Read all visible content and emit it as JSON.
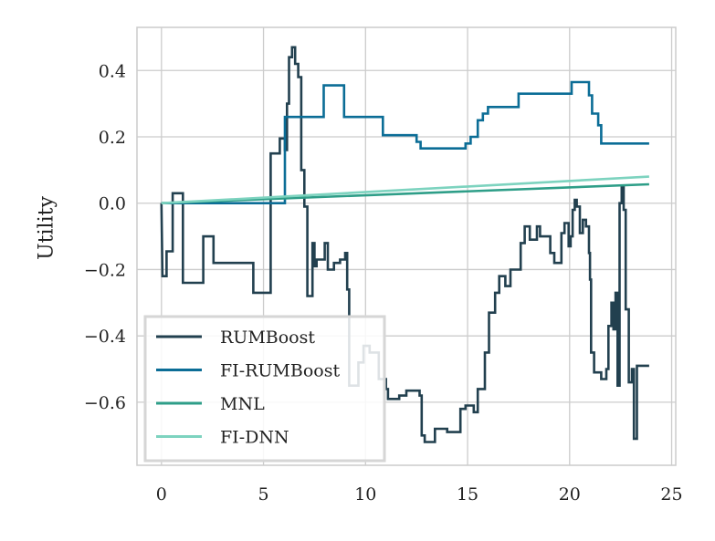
{
  "chart_data": {
    "type": "line",
    "title": "",
    "xlabel": "",
    "ylabel": "Utility",
    "xlim": [
      -1.2,
      25.2
    ],
    "ylim": [
      -0.79,
      0.53
    ],
    "xticks": [
      0,
      5,
      10,
      15,
      20,
      25
    ],
    "yticks": [
      -0.6,
      -0.4,
      -0.2,
      0.0,
      0.2,
      0.4
    ],
    "ytick_labels": [
      "−0.6",
      "−0.4",
      "−0.2",
      "0.0",
      "0.2",
      "0.4"
    ],
    "grid": true,
    "legend_position": "bottom-left",
    "series": [
      {
        "name": "RUMBoost",
        "color": "#22404f",
        "step": true,
        "points": [
          [
            0,
            0.0
          ],
          [
            0.05,
            -0.22
          ],
          [
            0.25,
            -0.22
          ],
          [
            0.25,
            -0.145
          ],
          [
            0.55,
            -0.145
          ],
          [
            0.55,
            0.03
          ],
          [
            1.05,
            0.03
          ],
          [
            1.05,
            -0.24
          ],
          [
            2.05,
            -0.24
          ],
          [
            2.05,
            -0.1
          ],
          [
            2.55,
            -0.1
          ],
          [
            2.55,
            -0.18
          ],
          [
            4.5,
            -0.18
          ],
          [
            4.5,
            -0.27
          ],
          [
            5.35,
            -0.27
          ],
          [
            5.35,
            0.15
          ],
          [
            5.8,
            0.15
          ],
          [
            5.8,
            0.195
          ],
          [
            6.05,
            0.195
          ],
          [
            6.05,
            0.16
          ],
          [
            6.15,
            0.16
          ],
          [
            6.15,
            0.3
          ],
          [
            6.25,
            0.3
          ],
          [
            6.25,
            0.44
          ],
          [
            6.4,
            0.44
          ],
          [
            6.4,
            0.47
          ],
          [
            6.55,
            0.47
          ],
          [
            6.55,
            0.42
          ],
          [
            6.7,
            0.42
          ],
          [
            6.7,
            0.38
          ],
          [
            6.85,
            0.38
          ],
          [
            6.85,
            0.1
          ],
          [
            7.0,
            0.1
          ],
          [
            7.0,
            -0.01
          ],
          [
            7.15,
            -0.01
          ],
          [
            7.15,
            -0.28
          ],
          [
            7.4,
            -0.28
          ],
          [
            7.4,
            -0.12
          ],
          [
            7.5,
            -0.12
          ],
          [
            7.5,
            -0.19
          ],
          [
            7.6,
            -0.19
          ],
          [
            7.6,
            -0.17
          ],
          [
            8.0,
            -0.17
          ],
          [
            8.0,
            -0.12
          ],
          [
            8.15,
            -0.12
          ],
          [
            8.15,
            -0.2
          ],
          [
            8.45,
            -0.2
          ],
          [
            8.45,
            -0.18
          ],
          [
            8.75,
            -0.18
          ],
          [
            8.75,
            -0.17
          ],
          [
            9.0,
            -0.17
          ],
          [
            9.0,
            -0.15
          ],
          [
            9.1,
            -0.15
          ],
          [
            9.1,
            -0.26
          ],
          [
            9.2,
            -0.26
          ],
          [
            9.2,
            -0.55
          ],
          [
            9.65,
            -0.55
          ],
          [
            9.65,
            -0.48
          ],
          [
            9.9,
            -0.48
          ],
          [
            9.9,
            -0.43
          ],
          [
            10.2,
            -0.43
          ],
          [
            10.2,
            -0.45
          ],
          [
            10.65,
            -0.45
          ],
          [
            10.65,
            -0.53
          ],
          [
            11.0,
            -0.53
          ],
          [
            11.0,
            -0.56
          ],
          [
            11.1,
            -0.56
          ],
          [
            11.1,
            -0.59
          ],
          [
            11.65,
            -0.59
          ],
          [
            11.65,
            -0.58
          ],
          [
            12.0,
            -0.58
          ],
          [
            12.0,
            -0.565
          ],
          [
            12.65,
            -0.565
          ],
          [
            12.65,
            -0.58
          ],
          [
            12.75,
            -0.58
          ],
          [
            12.75,
            -0.7
          ],
          [
            12.9,
            -0.7
          ],
          [
            12.9,
            -0.72
          ],
          [
            13.4,
            -0.72
          ],
          [
            13.4,
            -0.68
          ],
          [
            14.0,
            -0.68
          ],
          [
            14.0,
            -0.69
          ],
          [
            14.65,
            -0.69
          ],
          [
            14.65,
            -0.62
          ],
          [
            14.9,
            -0.62
          ],
          [
            14.9,
            -0.61
          ],
          [
            15.3,
            -0.61
          ],
          [
            15.3,
            -0.63
          ],
          [
            15.5,
            -0.63
          ],
          [
            15.5,
            -0.56
          ],
          [
            15.85,
            -0.56
          ],
          [
            15.85,
            -0.45
          ],
          [
            16.05,
            -0.45
          ],
          [
            16.05,
            -0.33
          ],
          [
            16.35,
            -0.33
          ],
          [
            16.35,
            -0.27
          ],
          [
            16.55,
            -0.27
          ],
          [
            16.55,
            -0.22
          ],
          [
            16.85,
            -0.22
          ],
          [
            16.85,
            -0.25
          ],
          [
            17.1,
            -0.25
          ],
          [
            17.1,
            -0.2
          ],
          [
            17.6,
            -0.2
          ],
          [
            17.6,
            -0.12
          ],
          [
            17.8,
            -0.12
          ],
          [
            17.8,
            -0.07
          ],
          [
            18.05,
            -0.07
          ],
          [
            18.05,
            -0.11
          ],
          [
            18.4,
            -0.11
          ],
          [
            18.4,
            -0.07
          ],
          [
            18.55,
            -0.07
          ],
          [
            18.55,
            -0.1
          ],
          [
            19.05,
            -0.1
          ],
          [
            19.05,
            -0.15
          ],
          [
            19.25,
            -0.15
          ],
          [
            19.25,
            -0.18
          ],
          [
            19.6,
            -0.18
          ],
          [
            19.6,
            -0.09
          ],
          [
            19.75,
            -0.09
          ],
          [
            19.75,
            -0.06
          ],
          [
            19.95,
            -0.06
          ],
          [
            19.95,
            -0.13
          ],
          [
            20.05,
            -0.13
          ],
          [
            20.05,
            -0.1
          ],
          [
            20.15,
            -0.1
          ],
          [
            20.15,
            -0.02
          ],
          [
            20.25,
            -0.02
          ],
          [
            20.25,
            0.01
          ],
          [
            20.35,
            0.01
          ],
          [
            20.35,
            -0.01
          ],
          [
            20.5,
            -0.01
          ],
          [
            20.5,
            -0.09
          ],
          [
            20.65,
            -0.09
          ],
          [
            20.65,
            -0.05
          ],
          [
            20.8,
            -0.05
          ],
          [
            20.8,
            -0.07
          ],
          [
            20.95,
            -0.07
          ],
          [
            20.95,
            -0.15
          ],
          [
            21.0,
            -0.15
          ],
          [
            21.0,
            -0.23
          ],
          [
            21.05,
            -0.23
          ],
          [
            21.05,
            -0.45
          ],
          [
            21.2,
            -0.45
          ],
          [
            21.2,
            -0.51
          ],
          [
            21.55,
            -0.51
          ],
          [
            21.55,
            -0.53
          ],
          [
            21.8,
            -0.53
          ],
          [
            21.8,
            -0.5
          ],
          [
            21.9,
            -0.5
          ],
          [
            21.9,
            -0.37
          ],
          [
            22.05,
            -0.37
          ],
          [
            22.05,
            -0.3
          ],
          [
            22.15,
            -0.3
          ],
          [
            22.15,
            -0.38
          ],
          [
            22.25,
            -0.38
          ],
          [
            22.25,
            -0.27
          ],
          [
            22.35,
            -0.27
          ],
          [
            22.35,
            -0.55
          ],
          [
            22.45,
            -0.55
          ],
          [
            22.45,
            0.0
          ],
          [
            22.55,
            0.0
          ],
          [
            22.55,
            0.05
          ],
          [
            22.65,
            0.05
          ],
          [
            22.65,
            -0.02
          ],
          [
            22.75,
            -0.02
          ],
          [
            22.75,
            -0.32
          ],
          [
            22.9,
            -0.32
          ],
          [
            22.9,
            -0.54
          ],
          [
            23.05,
            -0.54
          ],
          [
            23.05,
            -0.5
          ],
          [
            23.15,
            -0.5
          ],
          [
            23.15,
            -0.71
          ],
          [
            23.3,
            -0.71
          ],
          [
            23.3,
            -0.49
          ],
          [
            23.9,
            -0.49
          ]
        ]
      },
      {
        "name": "FI-RUMBoost",
        "color": "#0b6d96",
        "step": true,
        "points": [
          [
            0,
            0.0
          ],
          [
            6.05,
            0.0
          ],
          [
            6.05,
            0.26
          ],
          [
            7.95,
            0.26
          ],
          [
            7.95,
            0.355
          ],
          [
            8.95,
            0.355
          ],
          [
            8.95,
            0.26
          ],
          [
            10.85,
            0.26
          ],
          [
            10.85,
            0.205
          ],
          [
            12.5,
            0.205
          ],
          [
            12.5,
            0.185
          ],
          [
            12.7,
            0.185
          ],
          [
            12.7,
            0.165
          ],
          [
            14.9,
            0.165
          ],
          [
            14.9,
            0.18
          ],
          [
            15.15,
            0.18
          ],
          [
            15.15,
            0.2
          ],
          [
            15.5,
            0.2
          ],
          [
            15.5,
            0.25
          ],
          [
            15.75,
            0.25
          ],
          [
            15.75,
            0.27
          ],
          [
            16.0,
            0.27
          ],
          [
            16.0,
            0.29
          ],
          [
            17.5,
            0.29
          ],
          [
            17.5,
            0.33
          ],
          [
            20.1,
            0.33
          ],
          [
            20.1,
            0.365
          ],
          [
            20.95,
            0.365
          ],
          [
            20.95,
            0.325
          ],
          [
            21.1,
            0.325
          ],
          [
            21.1,
            0.27
          ],
          [
            21.4,
            0.27
          ],
          [
            21.4,
            0.235
          ],
          [
            21.55,
            0.235
          ],
          [
            21.55,
            0.18
          ],
          [
            23.9,
            0.18
          ]
        ]
      },
      {
        "name": "MNL",
        "color": "#2e9e88",
        "step": false,
        "points": [
          [
            0,
            0.0
          ],
          [
            23.9,
            0.057
          ]
        ]
      },
      {
        "name": "FI-DNN",
        "color": "#7dd3bf",
        "step": false,
        "points": [
          [
            0,
            0.0
          ],
          [
            23.9,
            0.08
          ]
        ]
      }
    ]
  }
}
